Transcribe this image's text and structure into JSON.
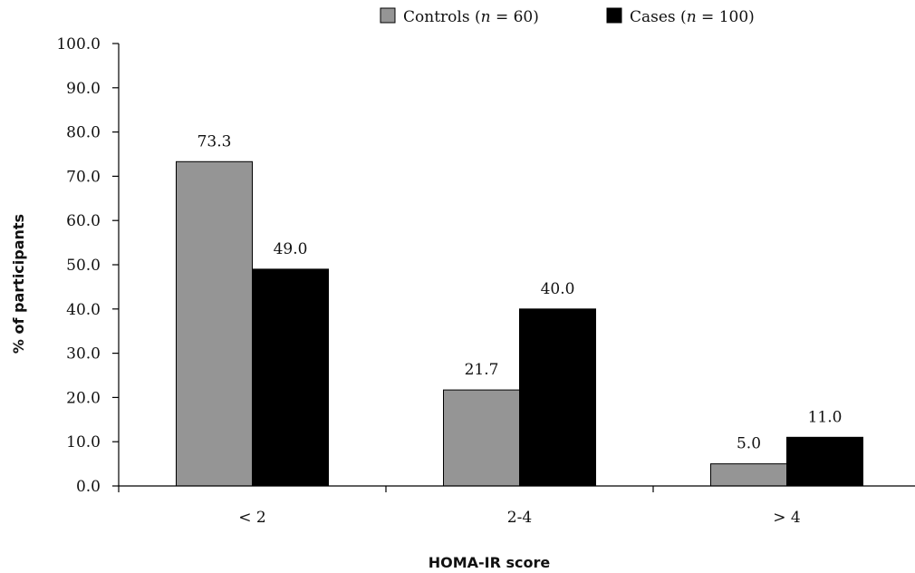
{
  "chart_data": {
    "type": "bar",
    "title": "",
    "xlabel": "HOMA-IR score",
    "ylabel": "% of participants",
    "categories": [
      "< 2",
      "2-4",
      "> 4"
    ],
    "ylim": [
      0,
      100
    ],
    "yticks": [
      "0.0",
      "10.0",
      "20.0",
      "30.0",
      "40.0",
      "50.0",
      "60.0",
      "70.0",
      "80.0",
      "90.0",
      "100.0"
    ],
    "grid": false,
    "legend_position": "top",
    "series": [
      {
        "name": "Controls (n = 60)",
        "name_parts": [
          "Controls (",
          "n",
          " = 60)"
        ],
        "color": "#959595",
        "values": [
          73.3,
          21.7,
          5.0
        ],
        "labels": [
          "73.3",
          "21.7",
          "5.0"
        ]
      },
      {
        "name": "Cases (n = 100)",
        "name_parts": [
          "Cases (",
          "n",
          " = 100)"
        ],
        "color": "#000000",
        "values": [
          49.0,
          40.0,
          11.0
        ],
        "labels": [
          "49.0",
          "40.0",
          "11.0"
        ]
      }
    ]
  }
}
